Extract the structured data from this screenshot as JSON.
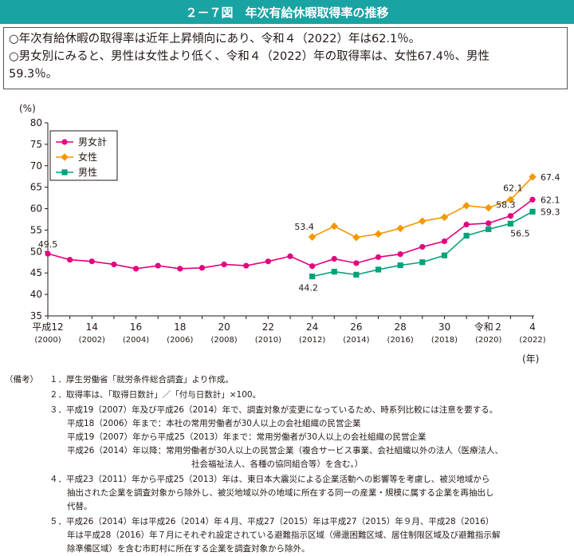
{
  "header": {
    "title": "２－７図　年次有給休暇取得率の推移"
  },
  "summary": {
    "line1": "○年次有給休暇の取得率は近年上昇傾向にあり、令和４（2022）年は62.1％。",
    "line2": "○男女別にみると、男性は女性より低く、令和４（2022）年の取得率は、女性67.4％、男性",
    "line3": "59.3％。"
  },
  "chart_data": {
    "type": "line",
    "ylabel": "(%)",
    "xlabel": "(年)",
    "ylim": [
      35,
      80
    ],
    "yticks": [
      35,
      40,
      45,
      50,
      55,
      60,
      65,
      70,
      75,
      80
    ],
    "x": [
      2000,
      2001,
      2002,
      2003,
      2004,
      2005,
      2006,
      2007,
      2008,
      2009,
      2010,
      2011,
      2012,
      2013,
      2014,
      2015,
      2016,
      2017,
      2018,
      2019,
      2020,
      2021,
      2022
    ],
    "xticks": [
      {
        "x": 2000,
        "label": "平成12",
        "year": "(2000)"
      },
      {
        "x": 2002,
        "label": "14",
        "year": "(2002)"
      },
      {
        "x": 2004,
        "label": "16",
        "year": "(2004)"
      },
      {
        "x": 2006,
        "label": "18",
        "year": "(2006)"
      },
      {
        "x": 2008,
        "label": "20",
        "year": "(2008)"
      },
      {
        "x": 2010,
        "label": "22",
        "year": "(2010)"
      },
      {
        "x": 2012,
        "label": "24",
        "year": "(2012)"
      },
      {
        "x": 2014,
        "label": "26",
        "year": "(2014)"
      },
      {
        "x": 2016,
        "label": "28",
        "year": "(2016)"
      },
      {
        "x": 2018,
        "label": "30",
        "year": "(2018)"
      },
      {
        "x": 2020,
        "label": "令和２",
        "year": "(2020)"
      },
      {
        "x": 2022,
        "label": "4",
        "year": "(2022)"
      }
    ],
    "legend": "top-left",
    "series": [
      {
        "name": "男女計",
        "color": "#e4007f",
        "marker": "circle",
        "x": [
          2000,
          2001,
          2002,
          2003,
          2004,
          2005,
          2006,
          2007,
          2008,
          2009,
          2010,
          2011,
          2012,
          2013,
          2014,
          2015,
          2016,
          2017,
          2018,
          2019,
          2020,
          2021,
          2022
        ],
        "values": [
          49.5,
          48.1,
          47.7,
          47.0,
          46.0,
          46.7,
          46.0,
          46.2,
          47.0,
          46.7,
          47.7,
          48.9,
          46.6,
          48.3,
          47.3,
          48.7,
          49.4,
          51.1,
          52.4,
          56.3,
          56.6,
          58.3,
          62.1
        ]
      },
      {
        "name": "女性",
        "color": "#f39800",
        "marker": "diamond",
        "x": [
          2012,
          2013,
          2014,
          2015,
          2016,
          2017,
          2018,
          2019,
          2020,
          2021,
          2022
        ],
        "values": [
          53.4,
          55.9,
          53.3,
          54.1,
          55.4,
          57.1,
          58.0,
          60.7,
          60.2,
          62.1,
          67.4
        ]
      },
      {
        "name": "男性",
        "color": "#00a27a",
        "marker": "square",
        "x": [
          2012,
          2013,
          2014,
          2015,
          2016,
          2017,
          2018,
          2019,
          2020,
          2021,
          2022
        ],
        "values": [
          44.2,
          45.3,
          44.6,
          45.8,
          46.8,
          47.5,
          49.1,
          53.7,
          55.2,
          56.5,
          59.3
        ]
      }
    ],
    "annotations": [
      {
        "series": 0,
        "x": 2000,
        "text": "49.5"
      },
      {
        "series": 1,
        "x": 2012,
        "text": "53.4"
      },
      {
        "series": 2,
        "x": 2012,
        "text": "44.2"
      },
      {
        "series": 0,
        "x": 2021,
        "text": "58.3"
      },
      {
        "series": 1,
        "x": 2021,
        "text": "62.1"
      },
      {
        "series": 2,
        "x": 2021,
        "text": "56.5"
      },
      {
        "series": 1,
        "x": 2022,
        "text": "67.4"
      },
      {
        "series": 0,
        "x": 2022,
        "text": "62.1"
      },
      {
        "series": 2,
        "x": 2022,
        "text": "59.3"
      }
    ]
  },
  "notes": {
    "lead": "（備考）",
    "n1": "１．厚生労働省「就労条件総合調査」より作成。",
    "n2": "２．取得率は、「取得日数計」／「付与日数計」×100。",
    "n3": "３．平成19（2007）年及び平成26（2014）年で、調査対象が変更になっているため、時系列比較には注意を要する。",
    "n3a": "平成18（2006）年まで：本社の常用労働者が30人以上の会社組織の民営企業",
    "n3b": "平成19（2007）年から平成25（2013）年まで：常用労働者が30人以上の会社組織の民営企業",
    "n3c": "平成26（2014）年以降：常用労働者が30人以上の民営企業（複合サービス事業、会社組織以外の法人（医療法人、",
    "n3d": "社会福祉法人、各種の協同組合等）を含む。）",
    "n4a": "４．平成23（2011）年から平成25（2013）年は、東日本大震災による企業活動への影響等を考慮し、被災地域から",
    "n4b": "抽出された企業を調査対象から除外し、被災地域以外の地域に所在する同一の産業・規模に属する企業を再抽出し",
    "n4c": "代替。",
    "n5a": "５．平成26（2014）年は平成26（2014）年４月、平成27（2015）年は平成27（2015）年９月、平成28（2016）",
    "n5b": "年は平成28（2016）年７月にそれぞれ設定されている避難指示区域（帰還困難区域、居住制限区域及び避難指示解",
    "n5c": "除準備区域）を含む市町村に所在する企業を調査対象から除外。"
  }
}
